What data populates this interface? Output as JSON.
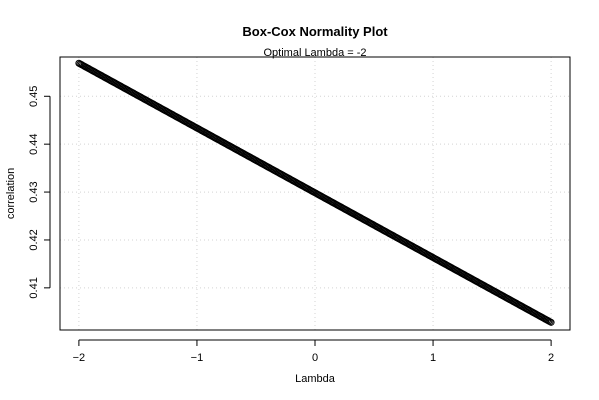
{
  "chart_data": {
    "type": "scatter",
    "title": "Box-Cox Normality Plot",
    "subtitle": "Optimal Lambda = -2",
    "xlabel": "Lambda",
    "ylabel": "correlation",
    "xlim": [
      -2.16,
      2.16
    ],
    "ylim": [
      0.4012,
      0.4582
    ],
    "x_ticks": [
      -2,
      -1,
      0,
      1,
      2
    ],
    "x_tick_labels": [
      "−2",
      "−1",
      "0",
      "1",
      "2"
    ],
    "y_ticks": [
      0.41,
      0.42,
      0.43,
      0.44,
      0.45
    ],
    "y_tick_labels": [
      "0.41",
      "0.42",
      "0.43",
      "0.44",
      "0.45"
    ],
    "grid": true,
    "series": [
      {
        "x_start": -2,
        "x_end": 2,
        "y_at_x_start": 0.4569,
        "y_at_x_end": 0.4028,
        "n_points": 401,
        "marker": "open-circle",
        "color": "#000000"
      }
    ]
  }
}
